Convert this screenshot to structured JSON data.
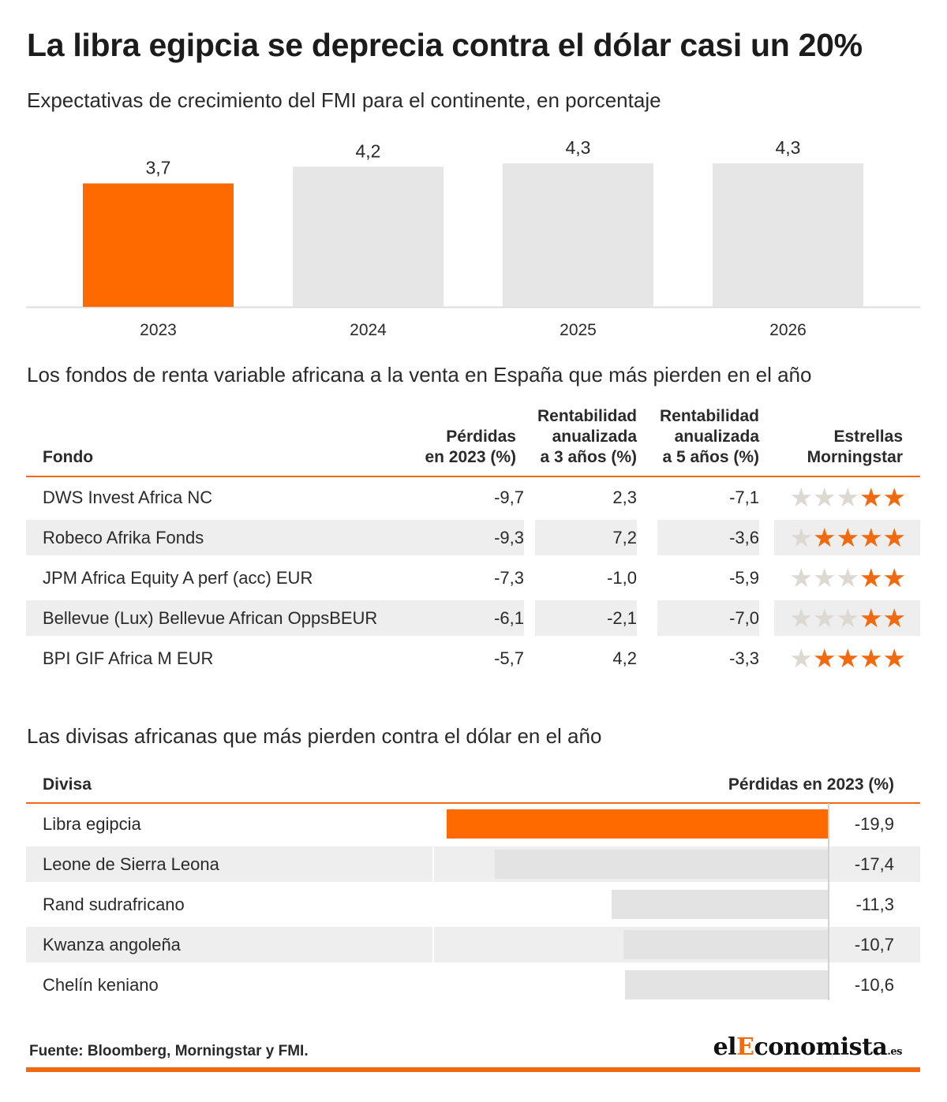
{
  "title": "La libra egipcia se deprecia contra el dólar casi un 20%",
  "chart1_subtitle": "Expectativas de crecimiento del FMI para el continente, en porcentaje",
  "chart_data": [
    {
      "type": "bar",
      "title": "Expectativas de crecimiento del FMI para el continente, en porcentaje",
      "categories": [
        "2023",
        "2024",
        "2025",
        "2026"
      ],
      "values": [
        3.7,
        4.2,
        4.3,
        4.3
      ],
      "value_labels": [
        "3,7",
        "4,2",
        "4,3",
        "4,3"
      ],
      "highlight_index": 0,
      "colors": {
        "highlight": "#ff6a00",
        "normal": "#e6e6e6"
      }
    },
    {
      "type": "bar",
      "orientation": "horizontal",
      "title": "Las divisas africanas que más pierden contra el dólar en el año",
      "categories": [
        "Libra egipcia",
        "Leone de Sierra Leona",
        "Rand sudrafricano",
        "Kwanza angoleña",
        "Chelín keniano"
      ],
      "values": [
        -19.9,
        -17.4,
        -11.3,
        -10.7,
        -10.6
      ],
      "value_labels": [
        "-19,9",
        "-17,4",
        "-11,3",
        "-10,7",
        "-10,6"
      ],
      "highlight_index": 0,
      "colors": {
        "highlight": "#ff6a00",
        "normal": "#e3e3e3"
      }
    }
  ],
  "funds": {
    "subtitle": "Los fondos de renta variable africana a la venta en España que más pierden en el año",
    "headers": {
      "fondo": "Fondo",
      "perdidas": [
        "Pérdidas",
        "en 2023 (%)"
      ],
      "rent3": [
        "Rentabilidad",
        "anualizada",
        "a 3 años (%)"
      ],
      "rent5": [
        "Rentabilidad",
        "anualizada",
        "a 5 años (%)"
      ],
      "estrellas": [
        "Estrellas",
        "Morningstar"
      ]
    },
    "rows": [
      {
        "name": "DWS Invest Africa NC",
        "perdidas": "-9,7",
        "rent3": "2,3",
        "rent5": "-7,1",
        "stars": 2
      },
      {
        "name": "Robeco Afrika Fonds",
        "perdidas": "-9,3",
        "rent3": "7,2",
        "rent5": "-3,6",
        "stars": 4
      },
      {
        "name": "JPM Africa Equity A perf (acc) EUR",
        "perdidas": "-7,3",
        "rent3": "-1,0",
        "rent5": "-5,9",
        "stars": 2
      },
      {
        "name": "Bellevue (Lux) Bellevue African OppsBEUR",
        "perdidas": "-6,1",
        "rent3": "-2,1",
        "rent5": "-7,0",
        "stars": 2
      },
      {
        "name": "BPI GIF Africa M EUR",
        "perdidas": "-5,7",
        "rent3": "4,2",
        "rent5": "-3,3",
        "stars": 4
      }
    ],
    "max_stars": 5,
    "star_colors": {
      "on": "#f26a0f",
      "off": "#dcd8d2"
    }
  },
  "currencies": {
    "subtitle": "Las divisas africanas que más pierden contra el dólar en el año",
    "headers": {
      "divisa": "Divisa",
      "perdidas": "Pérdidas en 2023 (%)"
    }
  },
  "footer": {
    "source": "Fuente: Bloomberg, Morningstar y FMI.",
    "logo": {
      "part1": "el",
      "part2": "E",
      "part3": "conomista",
      "part4": ".es"
    }
  },
  "accent_color": "#f26a0f"
}
